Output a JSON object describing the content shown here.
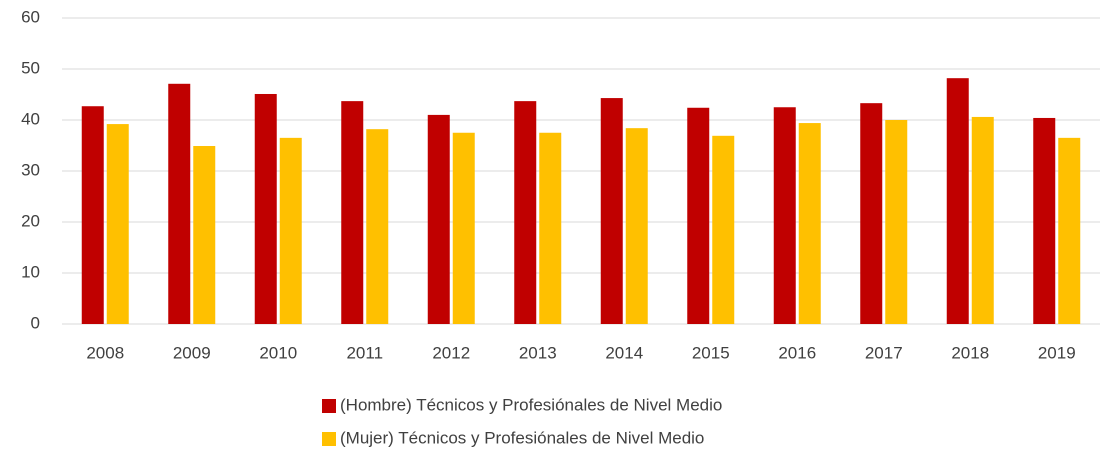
{
  "chart_data": {
    "type": "bar",
    "categories": [
      "2008",
      "2009",
      "2010",
      "2011",
      "2012",
      "2013",
      "2014",
      "2015",
      "2016",
      "2017",
      "2018",
      "2019"
    ],
    "series": [
      {
        "name": "(Hombre) Técnicos y Profesiónales de Nivel Medio",
        "color": "#c00000",
        "values": [
          42.7,
          47.1,
          45.1,
          43.7,
          41.0,
          43.7,
          44.3,
          42.4,
          42.5,
          43.3,
          48.2,
          40.4
        ]
      },
      {
        "name": "(Mujer) Técnicos y Profesiónales de Nivel Medio",
        "color": "#ffc000",
        "values": [
          39.2,
          34.9,
          36.5,
          38.2,
          37.5,
          37.5,
          38.4,
          36.9,
          39.4,
          40.0,
          40.6,
          36.5
        ]
      }
    ],
    "ylim": [
      0,
      60
    ],
    "yticks": [
      0,
      10,
      20,
      30,
      40,
      50,
      60
    ],
    "grid": true,
    "legend": "bottom"
  }
}
